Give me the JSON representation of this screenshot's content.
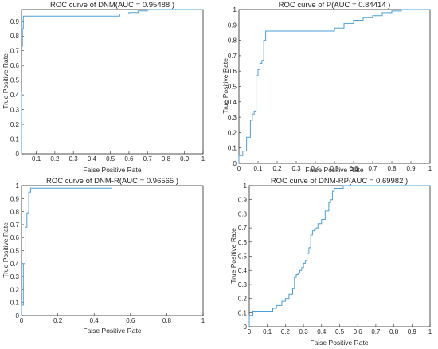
{
  "chart_data": [
    {
      "type": "line",
      "title": "ROC curve of DNM(AUC = 0.95488 )",
      "xlabel": "False Positive Rate",
      "ylabel": "True Positive Rate",
      "xlim": [
        0.02,
        1
      ],
      "ylim": [
        0,
        0.98
      ],
      "xticks": [
        "0.1",
        "0.2",
        "0.3",
        "0.4",
        "0.5",
        "0.6",
        "0.7",
        "0.8",
        "0.9",
        "1"
      ],
      "yticks": [
        "0",
        "0.1",
        "0.2",
        "0.3",
        "0.4",
        "0.5",
        "0.6",
        "0.7",
        "0.8",
        "0.9"
      ],
      "series": [
        {
          "color": "#4a9fd8",
          "x": [
            0.02,
            0.02,
            0.022,
            0.022,
            0.025,
            0.025,
            0.03,
            0.03,
            0.55,
            0.55,
            0.6,
            0.6,
            0.65,
            0.65,
            0.7,
            0.7,
            1.0
          ],
          "y": [
            0.0,
            0.42,
            0.42,
            0.73,
            0.73,
            0.85,
            0.85,
            0.935,
            0.935,
            0.95,
            0.95,
            0.96,
            0.96,
            0.97,
            0.97,
            0.98,
            0.98
          ]
        }
      ]
    },
    {
      "type": "line",
      "title": "ROC curve of P(AUC = 0.84414 )",
      "xlabel": "False Positive Rate",
      "ylabel": "True Positive Rate",
      "xlim": [
        0,
        1
      ],
      "ylim": [
        0,
        1
      ],
      "xticks": [
        "0",
        "0.1",
        "0.2",
        "0.3",
        "0.4",
        "0.5",
        "0.6",
        "0.7",
        "0.8",
        "0.9",
        "1"
      ],
      "yticks": [
        "0",
        "0.1",
        "0.2",
        "0.3",
        "0.4",
        "0.5",
        "0.6",
        "0.7",
        "0.8",
        "0.9",
        "1"
      ],
      "series": [
        {
          "color": "#4a9fd8",
          "x": [
            0,
            0,
            0.02,
            0.02,
            0.04,
            0.04,
            0.06,
            0.06,
            0.07,
            0.07,
            0.08,
            0.08,
            0.09,
            0.09,
            0.1,
            0.1,
            0.11,
            0.11,
            0.12,
            0.12,
            0.13,
            0.13,
            0.14,
            0.14,
            0.5,
            0.5,
            0.55,
            0.55,
            0.6,
            0.6,
            0.65,
            0.65,
            0.7,
            0.7,
            0.75,
            0.75,
            0.8,
            0.8,
            0.85,
            0.85,
            1.0
          ],
          "y": [
            0,
            0.05,
            0.05,
            0.08,
            0.08,
            0.17,
            0.17,
            0.28,
            0.28,
            0.32,
            0.32,
            0.34,
            0.34,
            0.57,
            0.57,
            0.61,
            0.61,
            0.65,
            0.65,
            0.67,
            0.67,
            0.8,
            0.8,
            0.86,
            0.86,
            0.88,
            0.88,
            0.91,
            0.91,
            0.93,
            0.93,
            0.95,
            0.95,
            0.96,
            0.96,
            0.98,
            0.98,
            0.99,
            0.99,
            1.0,
            1.0
          ]
        }
      ]
    },
    {
      "type": "line",
      "title": "ROC curve of DNM-R(AUC = 0.96565 )",
      "xlabel": "False Positive Rate",
      "ylabel": "True Positive Rate",
      "xlim": [
        0,
        1
      ],
      "ylim": [
        0,
        1
      ],
      "xticks": [
        "0",
        "0.2",
        "0.4",
        "0.6",
        "0.8",
        "1"
      ],
      "yticks": [
        "0",
        "0.1",
        "0.2",
        "0.3",
        "0.4",
        "0.5",
        "0.6",
        "0.7",
        "0.8",
        "0.9",
        "1"
      ],
      "series": [
        {
          "color": "#4a9fd8",
          "x": [
            0,
            0,
            0.01,
            0.01,
            0.02,
            0.02,
            0.03,
            0.03,
            0.04,
            0.04,
            0.05,
            0.05,
            0.5
          ],
          "y": [
            0,
            0.08,
            0.08,
            0.4,
            0.4,
            0.68,
            0.68,
            0.79,
            0.79,
            0.95,
            0.95,
            0.98,
            0.98
          ]
        }
      ]
    },
    {
      "type": "line",
      "title": "ROC curve of DNM-RP(AUC = 0.69982 )",
      "xlabel": "False Positive Rate",
      "ylabel": "True Positive Rate",
      "xlim": [
        0,
        1
      ],
      "ylim": [
        0,
        1
      ],
      "xticks": [
        "0",
        "0.1",
        "0.2",
        "0.3",
        "0.4",
        "0.5",
        "0.6",
        "0.7",
        "0.8",
        "0.9",
        "1"
      ],
      "yticks": [
        "0",
        "0.1",
        "0.2",
        "0.3",
        "0.4",
        "0.5",
        "0.6",
        "0.7",
        "0.8",
        "0.9",
        "1"
      ],
      "series": [
        {
          "color": "#4a9fd8",
          "x": [
            0,
            0,
            0.02,
            0.02,
            0.13,
            0.13,
            0.15,
            0.15,
            0.18,
            0.18,
            0.2,
            0.2,
            0.22,
            0.22,
            0.24,
            0.24,
            0.25,
            0.25,
            0.26,
            0.26,
            0.27,
            0.27,
            0.28,
            0.28,
            0.29,
            0.29,
            0.3,
            0.3,
            0.31,
            0.31,
            0.32,
            0.32,
            0.33,
            0.33,
            0.34,
            0.34,
            0.35,
            0.35,
            0.36,
            0.36,
            0.37,
            0.37,
            0.38,
            0.38,
            0.4,
            0.4,
            0.42,
            0.42,
            0.44,
            0.44,
            0.45,
            0.45,
            0.46,
            0.46,
            0.47,
            0.47,
            0.52,
            0.52,
            0.55,
            0.55,
            1.0
          ],
          "y": [
            0,
            0.08,
            0.08,
            0.11,
            0.11,
            0.13,
            0.13,
            0.15,
            0.15,
            0.18,
            0.18,
            0.2,
            0.2,
            0.23,
            0.23,
            0.27,
            0.27,
            0.35,
            0.35,
            0.37,
            0.37,
            0.38,
            0.38,
            0.4,
            0.4,
            0.42,
            0.42,
            0.45,
            0.45,
            0.47,
            0.47,
            0.52,
            0.52,
            0.56,
            0.56,
            0.65,
            0.65,
            0.68,
            0.68,
            0.69,
            0.69,
            0.7,
            0.7,
            0.73,
            0.73,
            0.76,
            0.76,
            0.82,
            0.82,
            0.88,
            0.88,
            0.9,
            0.9,
            0.96,
            0.96,
            0.98,
            0.98,
            1.0,
            1.0,
            1.0,
            1.0
          ]
        }
      ]
    }
  ]
}
